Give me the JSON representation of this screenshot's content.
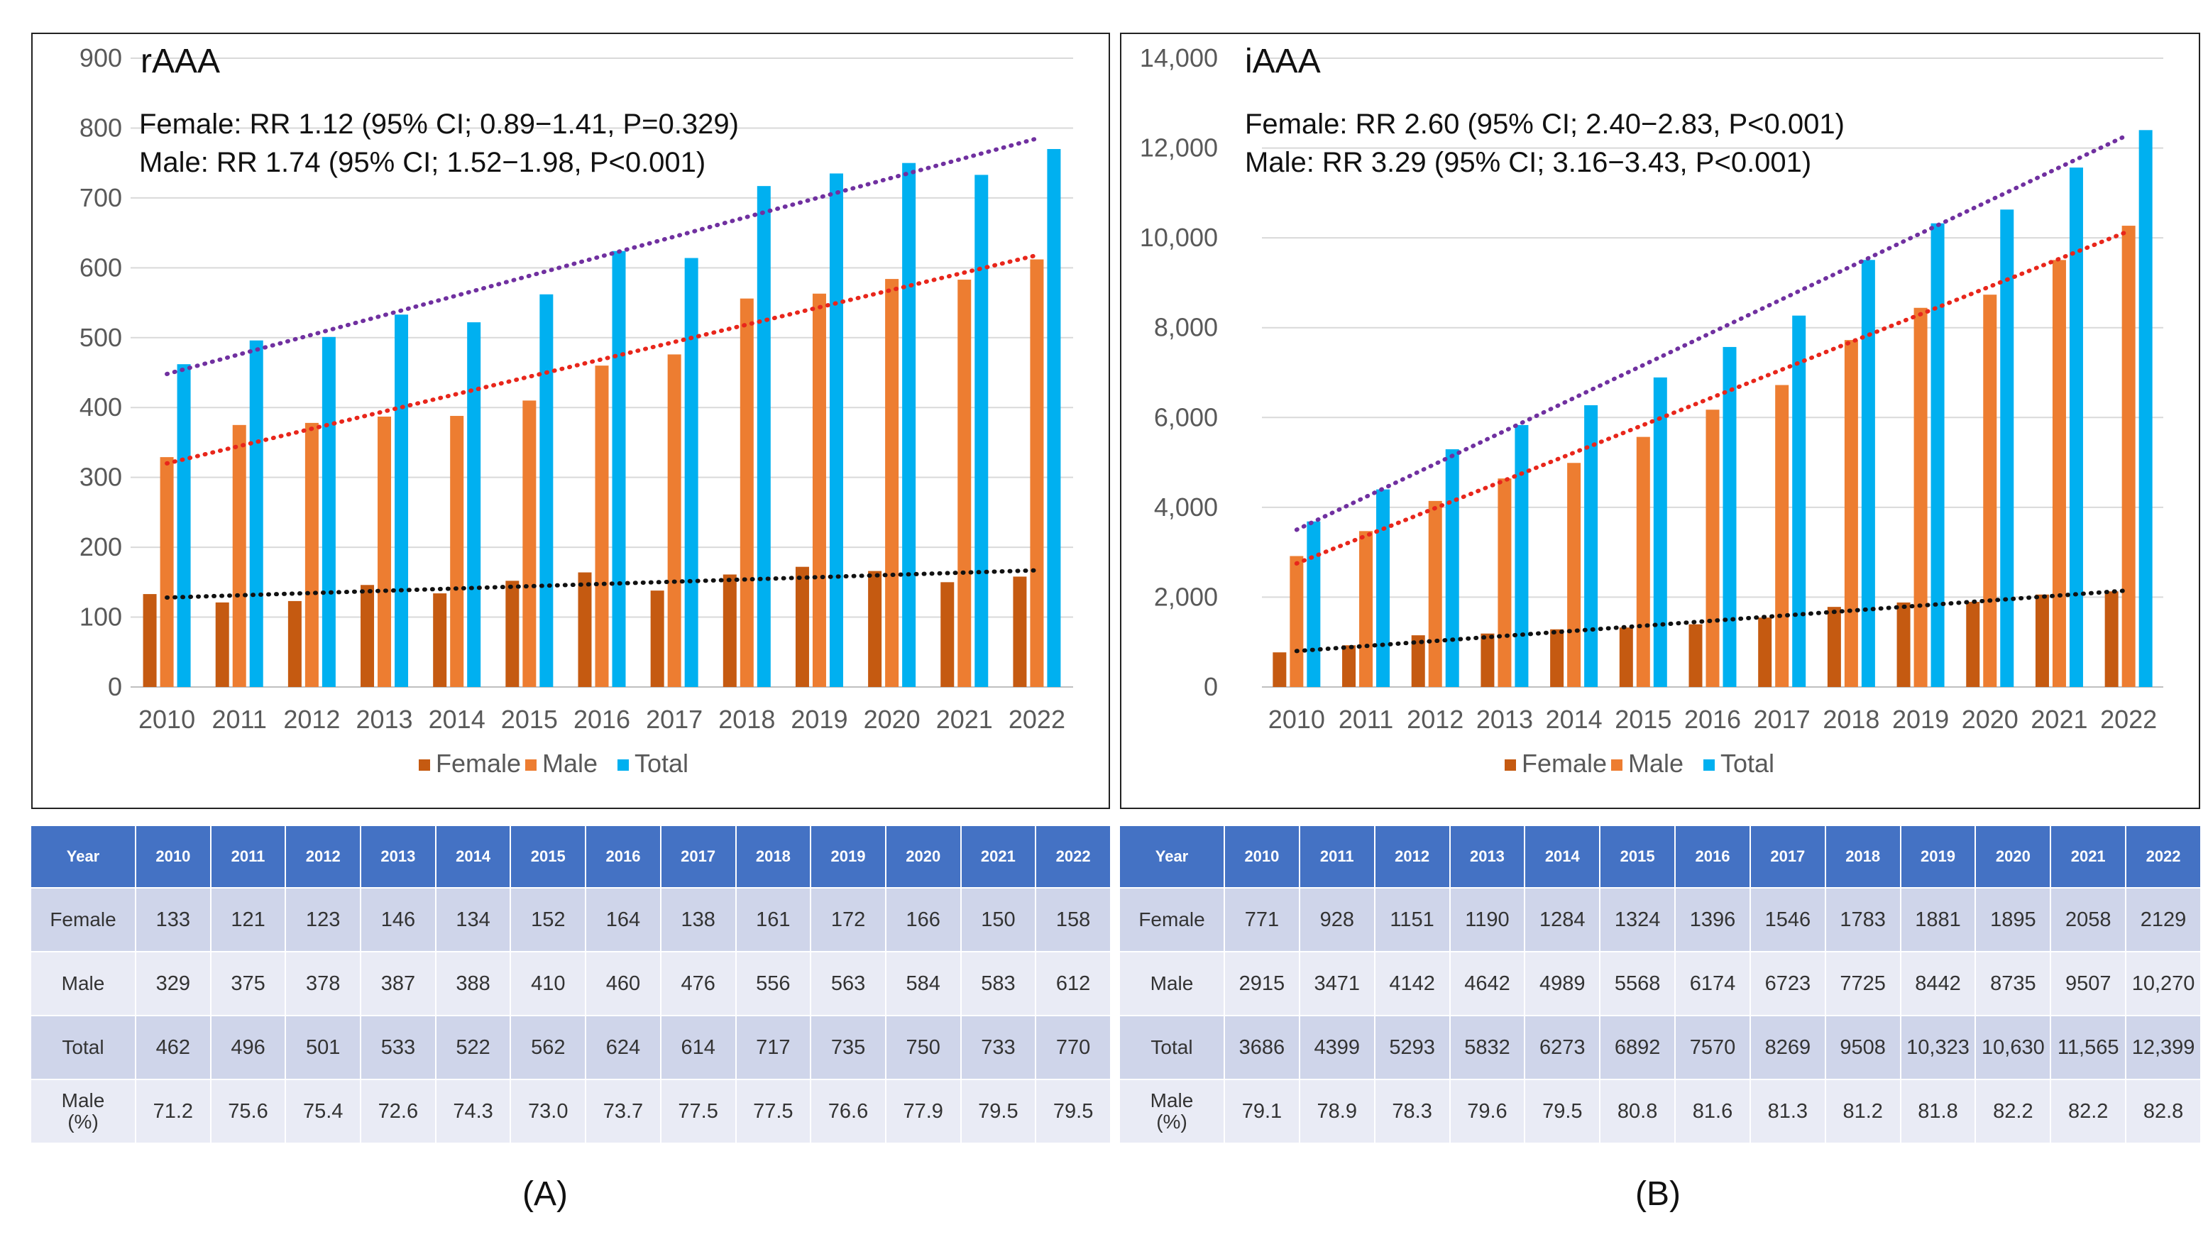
{
  "chart_data": [
    {
      "id": "A",
      "type": "bar",
      "title": "rAAA",
      "annotations": [
        "Female: RR 1.12 (95% CI; 0.89−1.41, P=0.329)",
        "Male:  RR 1.74 (95% CI; 1.52−1.98, P<0.001)"
      ],
      "categories": [
        "2010",
        "2011",
        "2012",
        "2013",
        "2014",
        "2015",
        "2016",
        "2017",
        "2018",
        "2019",
        "2020",
        "2021",
        "2022"
      ],
      "series": [
        {
          "name": "Female",
          "color": "#c55a11",
          "values": [
            133,
            121,
            123,
            146,
            134,
            152,
            164,
            138,
            161,
            172,
            166,
            150,
            158
          ]
        },
        {
          "name": "Male",
          "color": "#ed7d31",
          "values": [
            329,
            375,
            378,
            387,
            388,
            410,
            460,
            476,
            556,
            563,
            584,
            583,
            612
          ]
        },
        {
          "name": "Total",
          "color": "#00b0f0",
          "values": [
            462,
            496,
            501,
            533,
            522,
            562,
            624,
            614,
            717,
            735,
            750,
            733,
            770
          ]
        }
      ],
      "trendlines": [
        {
          "series": "Female",
          "color": "#111111",
          "start": 128,
          "end": 167
        },
        {
          "series": "Male",
          "color": "#e8261b",
          "start": 320,
          "end": 618
        },
        {
          "series": "Total",
          "color": "#7030a0",
          "start": 448,
          "end": 785
        }
      ],
      "ylim": [
        0,
        900
      ],
      "yticks": [
        0,
        100,
        200,
        300,
        400,
        500,
        600,
        700,
        800,
        900
      ],
      "ytick_labels": [
        "0",
        "100",
        "200",
        "300",
        "400",
        "500",
        "600",
        "700",
        "800",
        "900"
      ],
      "xlabel": "",
      "ylabel": "",
      "legend": [
        "Female",
        "Male",
        "Total"
      ],
      "legend_position": "bottom"
    },
    {
      "id": "B",
      "type": "bar",
      "title": "iAAA",
      "annotations": [
        "Female: RR 2.60 (95% CI; 2.40−2.83, P<0.001)",
        "Male:  RR 3.29 (95% CI; 3.16−3.43, P<0.001)"
      ],
      "categories": [
        "2010",
        "2011",
        "2012",
        "2013",
        "2014",
        "2015",
        "2016",
        "2017",
        "2018",
        "2019",
        "2020",
        "2021",
        "2022"
      ],
      "series": [
        {
          "name": "Female",
          "color": "#c55a11",
          "values": [
            771,
            928,
            1151,
            1190,
            1284,
            1324,
            1396,
            1546,
            1783,
            1881,
            1895,
            2058,
            2129
          ]
        },
        {
          "name": "Male",
          "color": "#ed7d31",
          "values": [
            2915,
            3471,
            4142,
            4642,
            4989,
            5568,
            6174,
            6723,
            7725,
            8442,
            8735,
            9507,
            10270
          ]
        },
        {
          "name": "Total",
          "color": "#00b0f0",
          "values": [
            3686,
            4399,
            5293,
            5832,
            6273,
            6892,
            7570,
            8269,
            9508,
            10323,
            10630,
            11565,
            12399
          ]
        }
      ],
      "trendlines": [
        {
          "series": "Female",
          "color": "#111111",
          "start": 800,
          "end": 2150
        },
        {
          "series": "Male",
          "color": "#e8261b",
          "start": 2750,
          "end": 10150
        },
        {
          "series": "Total",
          "color": "#7030a0",
          "start": 3500,
          "end": 12300
        }
      ],
      "ylim": [
        0,
        14000
      ],
      "yticks": [
        0,
        2000,
        4000,
        6000,
        8000,
        10000,
        12000,
        14000
      ],
      "ytick_labels": [
        "0",
        "2,000",
        "4,000",
        "6,000",
        "8,000",
        "10,000",
        "12,000",
        "14,000"
      ],
      "xlabel": "",
      "ylabel": "",
      "legend": [
        "Female",
        "Male",
        "Total"
      ],
      "legend_position": "bottom"
    }
  ],
  "tables": {
    "A": {
      "header_label": "Year",
      "years": [
        "2010",
        "2011",
        "2012",
        "2013",
        "2014",
        "2015",
        "2016",
        "2017",
        "2018",
        "2019",
        "2020",
        "2021",
        "2022"
      ],
      "rows": [
        {
          "label": "Female",
          "values": [
            "133",
            "121",
            "123",
            "146",
            "134",
            "152",
            "164",
            "138",
            "161",
            "172",
            "166",
            "150",
            "158"
          ]
        },
        {
          "label": "Male",
          "values": [
            "329",
            "375",
            "378",
            "387",
            "388",
            "410",
            "460",
            "476",
            "556",
            "563",
            "584",
            "583",
            "612"
          ]
        },
        {
          "label": "Total",
          "values": [
            "462",
            "496",
            "501",
            "533",
            "522",
            "562",
            "624",
            "614",
            "717",
            "735",
            "750",
            "733",
            "770"
          ]
        },
        {
          "label": "Male\n(%)",
          "values": [
            "71.2",
            "75.6",
            "75.4",
            "72.6",
            "74.3",
            "73.0",
            "73.7",
            "77.5",
            "77.5",
            "76.6",
            "77.9",
            "79.5",
            "79.5"
          ]
        }
      ]
    },
    "B": {
      "header_label": "Year",
      "years": [
        "2010",
        "2011",
        "2012",
        "2013",
        "2014",
        "2015",
        "2016",
        "2017",
        "2018",
        "2019",
        "2020",
        "2021",
        "2022"
      ],
      "rows": [
        {
          "label": "Female",
          "values": [
            "771",
            "928",
            "1151",
            "1190",
            "1284",
            "1324",
            "1396",
            "1546",
            "1783",
            "1881",
            "1895",
            "2058",
            "2129"
          ]
        },
        {
          "label": "Male",
          "values": [
            "2915",
            "3471",
            "4142",
            "4642",
            "4989",
            "5568",
            "6174",
            "6723",
            "7725",
            "8442",
            "8735",
            "9507",
            "10,270"
          ]
        },
        {
          "label": "Total",
          "values": [
            "3686",
            "4399",
            "5293",
            "5832",
            "6273",
            "6892",
            "7570",
            "8269",
            "9508",
            "10,323",
            "10,630",
            "11,565",
            "12,399"
          ]
        },
        {
          "label": "Male\n(%)",
          "values": [
            "79.1",
            "78.9",
            "78.3",
            "79.6",
            "79.5",
            "80.8",
            "81.6",
            "81.3",
            "81.2",
            "81.8",
            "82.2",
            "82.2",
            "82.8"
          ]
        }
      ]
    }
  },
  "captions": {
    "A": "(A)",
    "B": "(B)"
  }
}
